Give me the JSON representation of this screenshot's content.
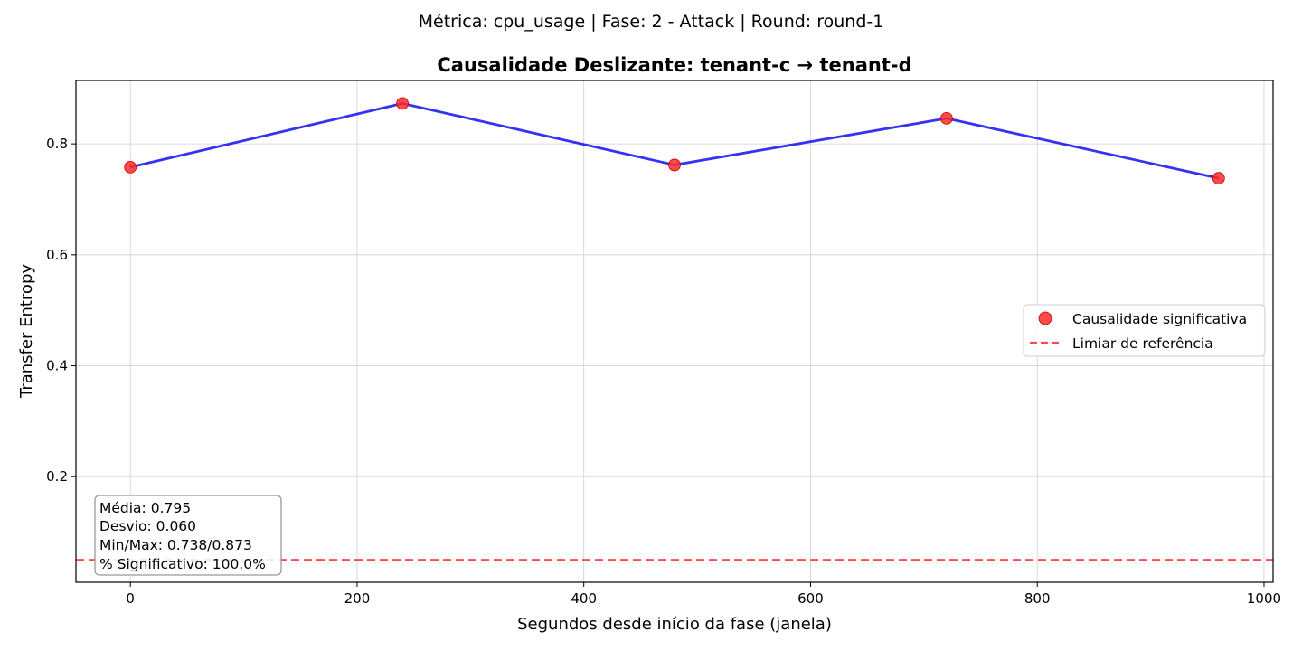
{
  "suptitle": "Métrica: cpu_usage | Fase: 2 - Attack | Round: round-1",
  "colors": {
    "line": "#0000ee",
    "marker": "#ff2a2a",
    "threshold": "#ff4c4c",
    "grid": "#d0d0d0",
    "stats_box_border": "#999999"
  },
  "chart_data": {
    "type": "line",
    "title": "Causalidade Deslizante: tenant-c → tenant-d",
    "xlabel": "Segundos desde início da fase (janela)",
    "ylabel": "Transfer Entropy",
    "xlim": [
      -48,
      1008
    ],
    "ylim": [
      0.0097,
      0.9143
    ],
    "x_ticks": [
      0,
      200,
      400,
      600,
      800,
      1000
    ],
    "y_ticks": [
      0.2,
      0.4,
      0.6,
      0.8
    ],
    "x_tick_labels": [
      "0",
      "200",
      "400",
      "600",
      "800",
      "1000"
    ],
    "y_tick_labels": [
      "0.2",
      "0.4",
      "0.6",
      "0.8"
    ],
    "grid": true,
    "legend_position": "center-right",
    "series": [
      {
        "x": [
          0,
          240,
          480,
          720,
          960
        ],
        "y": [
          0.758,
          0.873,
          0.762,
          0.846,
          0.738
        ]
      }
    ],
    "legend": [
      {
        "label": "Causalidade significativa",
        "kind": "marker"
      },
      {
        "label": "Limiar de referência",
        "kind": "dashed-line"
      }
    ],
    "threshold": 0.05,
    "stats": [
      "Média: 0.795",
      "Desvio: 0.060",
      "Min/Max: 0.738/0.873",
      "% Significativo: 100.0%"
    ]
  }
}
